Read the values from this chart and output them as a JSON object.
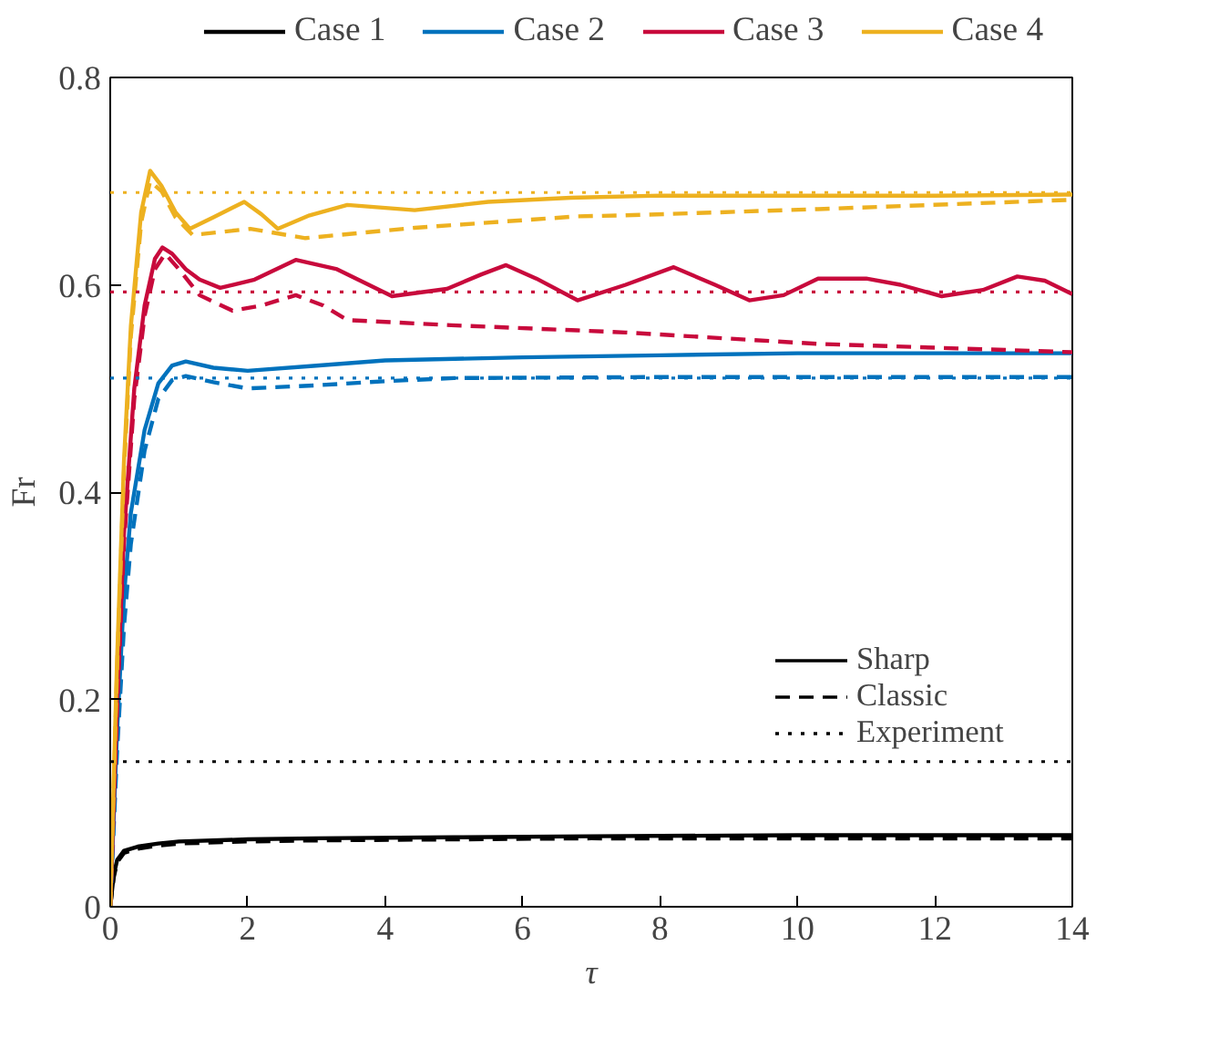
{
  "chart_data": {
    "type": "line",
    "xlabel": "τ",
    "ylabel": "Fr",
    "xlim": [
      0,
      14
    ],
    "ylim": [
      0,
      0.8
    ],
    "xticks": [
      0,
      2,
      4,
      6,
      8,
      10,
      12,
      14
    ],
    "yticks": [
      0,
      0.2,
      0.4,
      0.6,
      0.8
    ],
    "grid": false,
    "legend": "top",
    "series": [
      {
        "name": "Case 1",
        "color": "#000000",
        "line_style": "solid",
        "x": [
          0,
          0.05,
          0.1,
          0.2,
          0.4,
          0.7,
          1,
          2,
          3,
          5,
          7,
          10,
          14
        ],
        "values": [
          0,
          0.03,
          0.045,
          0.054,
          0.058,
          0.061,
          0.063,
          0.065,
          0.066,
          0.067,
          0.068,
          0.069,
          0.069
        ]
      },
      {
        "color": "#000000",
        "line_style": "dashed",
        "x": [
          0,
          0.05,
          0.1,
          0.2,
          0.4,
          0.7,
          1,
          2,
          3,
          5,
          7,
          10,
          14
        ],
        "values": [
          0,
          0.028,
          0.043,
          0.052,
          0.056,
          0.059,
          0.061,
          0.063,
          0.064,
          0.065,
          0.066,
          0.066,
          0.066
        ]
      },
      {
        "name": "Case 2",
        "color": "#0072bd",
        "line_style": "solid",
        "x": [
          0,
          0.1,
          0.2,
          0.3,
          0.5,
          0.7,
          0.9,
          1.1,
          1.5,
          2,
          3,
          4,
          6,
          8,
          10,
          14
        ],
        "values": [
          0,
          0.17,
          0.3,
          0.38,
          0.46,
          0.505,
          0.522,
          0.526,
          0.52,
          0.517,
          0.522,
          0.527,
          0.53,
          0.532,
          0.534,
          0.534
        ]
      },
      {
        "color": "#0072bd",
        "line_style": "dashed",
        "x": [
          0,
          0.1,
          0.2,
          0.3,
          0.5,
          0.7,
          0.9,
          1.1,
          1.5,
          2,
          3,
          4,
          5,
          8,
          10,
          14
        ],
        "values": [
          0,
          0.15,
          0.27,
          0.35,
          0.44,
          0.49,
          0.508,
          0.512,
          0.506,
          0.5,
          0.503,
          0.507,
          0.51,
          0.511,
          0.511,
          0.511
        ]
      },
      {
        "name": "Case 3",
        "color": "#c80a3c",
        "line_style": "solid",
        "x": [
          0,
          0.1,
          0.2,
          0.35,
          0.5,
          0.65,
          0.76,
          0.9,
          1.1,
          1.3,
          1.6,
          2.1,
          2.7,
          3.3,
          4.1,
          4.9,
          5.4,
          5.76,
          6.2,
          6.8,
          7.5,
          8.2,
          8.8,
          9.3,
          9.8,
          10.3,
          11.0,
          11.5,
          12.1,
          12.7,
          13.2,
          13.6,
          14
        ],
        "values": [
          0,
          0.2,
          0.36,
          0.5,
          0.58,
          0.625,
          0.636,
          0.63,
          0.615,
          0.605,
          0.597,
          0.605,
          0.624,
          0.615,
          0.589,
          0.596,
          0.61,
          0.619,
          0.606,
          0.585,
          0.6,
          0.617,
          0.6,
          0.585,
          0.59,
          0.606,
          0.606,
          0.6,
          0.589,
          0.595,
          0.608,
          0.604,
          0.591
        ]
      },
      {
        "color": "#c80a3c",
        "line_style": "dashed",
        "x": [
          0,
          0.1,
          0.2,
          0.35,
          0.5,
          0.65,
          0.8,
          1.0,
          1.3,
          1.78,
          2.2,
          2.7,
          3.1,
          3.45,
          4.96,
          6.8,
          7.5,
          10.3,
          14
        ],
        "values": [
          0,
          0.19,
          0.35,
          0.49,
          0.57,
          0.615,
          0.63,
          0.615,
          0.59,
          0.575,
          0.58,
          0.59,
          0.58,
          0.566,
          0.561,
          0.556,
          0.554,
          0.543,
          0.535
        ]
      },
      {
        "name": "Case 4",
        "color": "#edb120",
        "line_style": "solid",
        "x": [
          0,
          0.1,
          0.2,
          0.3,
          0.45,
          0.58,
          0.75,
          0.95,
          1.16,
          1.5,
          1.95,
          2.2,
          2.44,
          2.9,
          3.45,
          4.43,
          5.5,
          6.7,
          8,
          10,
          12,
          14
        ],
        "values": [
          0,
          0.24,
          0.43,
          0.56,
          0.67,
          0.71,
          0.695,
          0.67,
          0.654,
          0.665,
          0.68,
          0.668,
          0.654,
          0.667,
          0.677,
          0.672,
          0.68,
          0.684,
          0.686,
          0.686,
          0.686,
          0.687
        ]
      },
      {
        "color": "#edb120",
        "line_style": "dashed",
        "x": [
          0,
          0.1,
          0.2,
          0.3,
          0.45,
          0.58,
          0.75,
          0.95,
          1.2,
          2.04,
          2.84,
          4.43,
          6.8,
          7.5,
          10.3,
          14
        ],
        "values": [
          0,
          0.23,
          0.42,
          0.55,
          0.66,
          0.7,
          0.69,
          0.665,
          0.648,
          0.654,
          0.645,
          0.655,
          0.666,
          0.667,
          0.673,
          0.682
        ]
      }
    ],
    "ref_lines": [
      {
        "axis": "y",
        "value": 0.14,
        "color": "#000000",
        "line_style": "dotted"
      },
      {
        "axis": "y",
        "value": 0.51,
        "color": "#0072bd",
        "line_style": "dotted"
      },
      {
        "axis": "y",
        "value": 0.593,
        "color": "#c80a3c",
        "line_style": "dotted"
      },
      {
        "axis": "y",
        "value": 0.689,
        "color": "#edb120",
        "line_style": "dotted"
      }
    ],
    "annotations": [
      "Sharp",
      "Classic",
      "Experiment"
    ]
  }
}
